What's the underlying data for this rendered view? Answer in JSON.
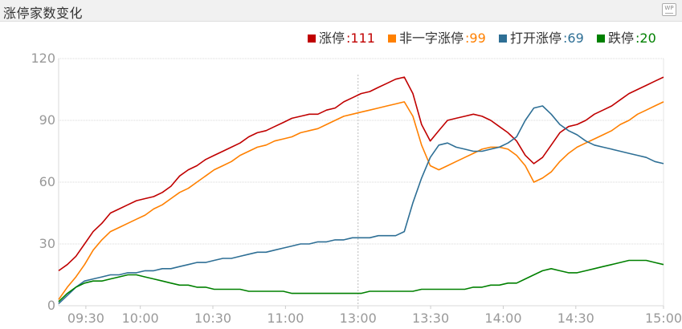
{
  "header": {
    "title": "涨停家数变化",
    "icon_text": "WP"
  },
  "chart_data": {
    "type": "line",
    "xlabel": "",
    "ylabel": "",
    "ylim": [
      0,
      120
    ],
    "yticks": [
      0,
      30,
      60,
      90,
      120
    ],
    "xticks": [
      "09:30",
      "10:00",
      "10:30",
      "11:00",
      "13:00",
      "13:30",
      "14:00",
      "14:30",
      "15:00"
    ],
    "grid": true,
    "legend_position": "top-right",
    "series": [
      {
        "name": "涨停",
        "value_label": "111",
        "color": "#c00000",
        "values": [
          17,
          20,
          24,
          30,
          36,
          40,
          45,
          47,
          49,
          51,
          52,
          53,
          55,
          58,
          63,
          66,
          68,
          71,
          73,
          75,
          77,
          79,
          82,
          84,
          85,
          87,
          89,
          91,
          92,
          93,
          93,
          95,
          96,
          99,
          101,
          103,
          104,
          106,
          108,
          110,
          111,
          103,
          88,
          80,
          85,
          90,
          91,
          92,
          93,
          92,
          90,
          87,
          84,
          80,
          73,
          69,
          72,
          78,
          84,
          87,
          88,
          90,
          93,
          95,
          97,
          100,
          103,
          105,
          107,
          109,
          111
        ],
        "labels": {
          "min": 3,
          "max": 3
        }
      },
      {
        "name": "非一字涨停",
        "value_label": "99",
        "color": "#ff8000",
        "values": [
          3,
          9,
          14,
          20,
          27,
          32,
          36,
          38,
          40,
          42,
          44,
          47,
          49,
          52,
          55,
          57,
          60,
          63,
          66,
          68,
          70,
          73,
          75,
          77,
          78,
          80,
          81,
          82,
          84,
          85,
          86,
          88,
          90,
          92,
          93,
          94,
          95,
          96,
          97,
          98,
          99,
          92,
          78,
          68,
          66,
          68,
          70,
          72,
          74,
          76,
          77,
          77,
          76,
          73,
          68,
          60,
          62,
          65,
          70,
          74,
          77,
          79,
          81,
          83,
          85,
          88,
          90,
          93,
          95,
          97,
          99
        ]
      },
      {
        "name": "打开涨停",
        "value_label": "69",
        "color": "#2e6f95",
        "values": [
          1,
          5,
          9,
          12,
          13,
          14,
          15,
          15,
          16,
          16,
          17,
          17,
          18,
          18,
          19,
          20,
          21,
          21,
          22,
          23,
          23,
          24,
          25,
          26,
          26,
          27,
          28,
          29,
          30,
          30,
          31,
          31,
          32,
          32,
          33,
          33,
          33,
          34,
          34,
          34,
          36,
          50,
          62,
          72,
          78,
          79,
          77,
          76,
          75,
          75,
          76,
          77,
          79,
          82,
          90,
          96,
          97,
          93,
          88,
          85,
          83,
          80,
          78,
          77,
          76,
          75,
          74,
          73,
          72,
          70,
          69
        ]
      },
      {
        "name": "跌停",
        "value_label": "20",
        "color": "#008000",
        "values": [
          2,
          6,
          9,
          11,
          12,
          12,
          13,
          14,
          15,
          15,
          14,
          13,
          12,
          11,
          10,
          10,
          9,
          9,
          8,
          8,
          8,
          8,
          7,
          7,
          7,
          7,
          7,
          6,
          6,
          6,
          6,
          6,
          6,
          6,
          6,
          6,
          7,
          7,
          7,
          7,
          7,
          7,
          8,
          8,
          8,
          8,
          8,
          8,
          9,
          9,
          10,
          10,
          11,
          11,
          13,
          15,
          17,
          18,
          17,
          16,
          16,
          17,
          18,
          19,
          20,
          21,
          22,
          22,
          22,
          21,
          20
        ]
      }
    ]
  }
}
